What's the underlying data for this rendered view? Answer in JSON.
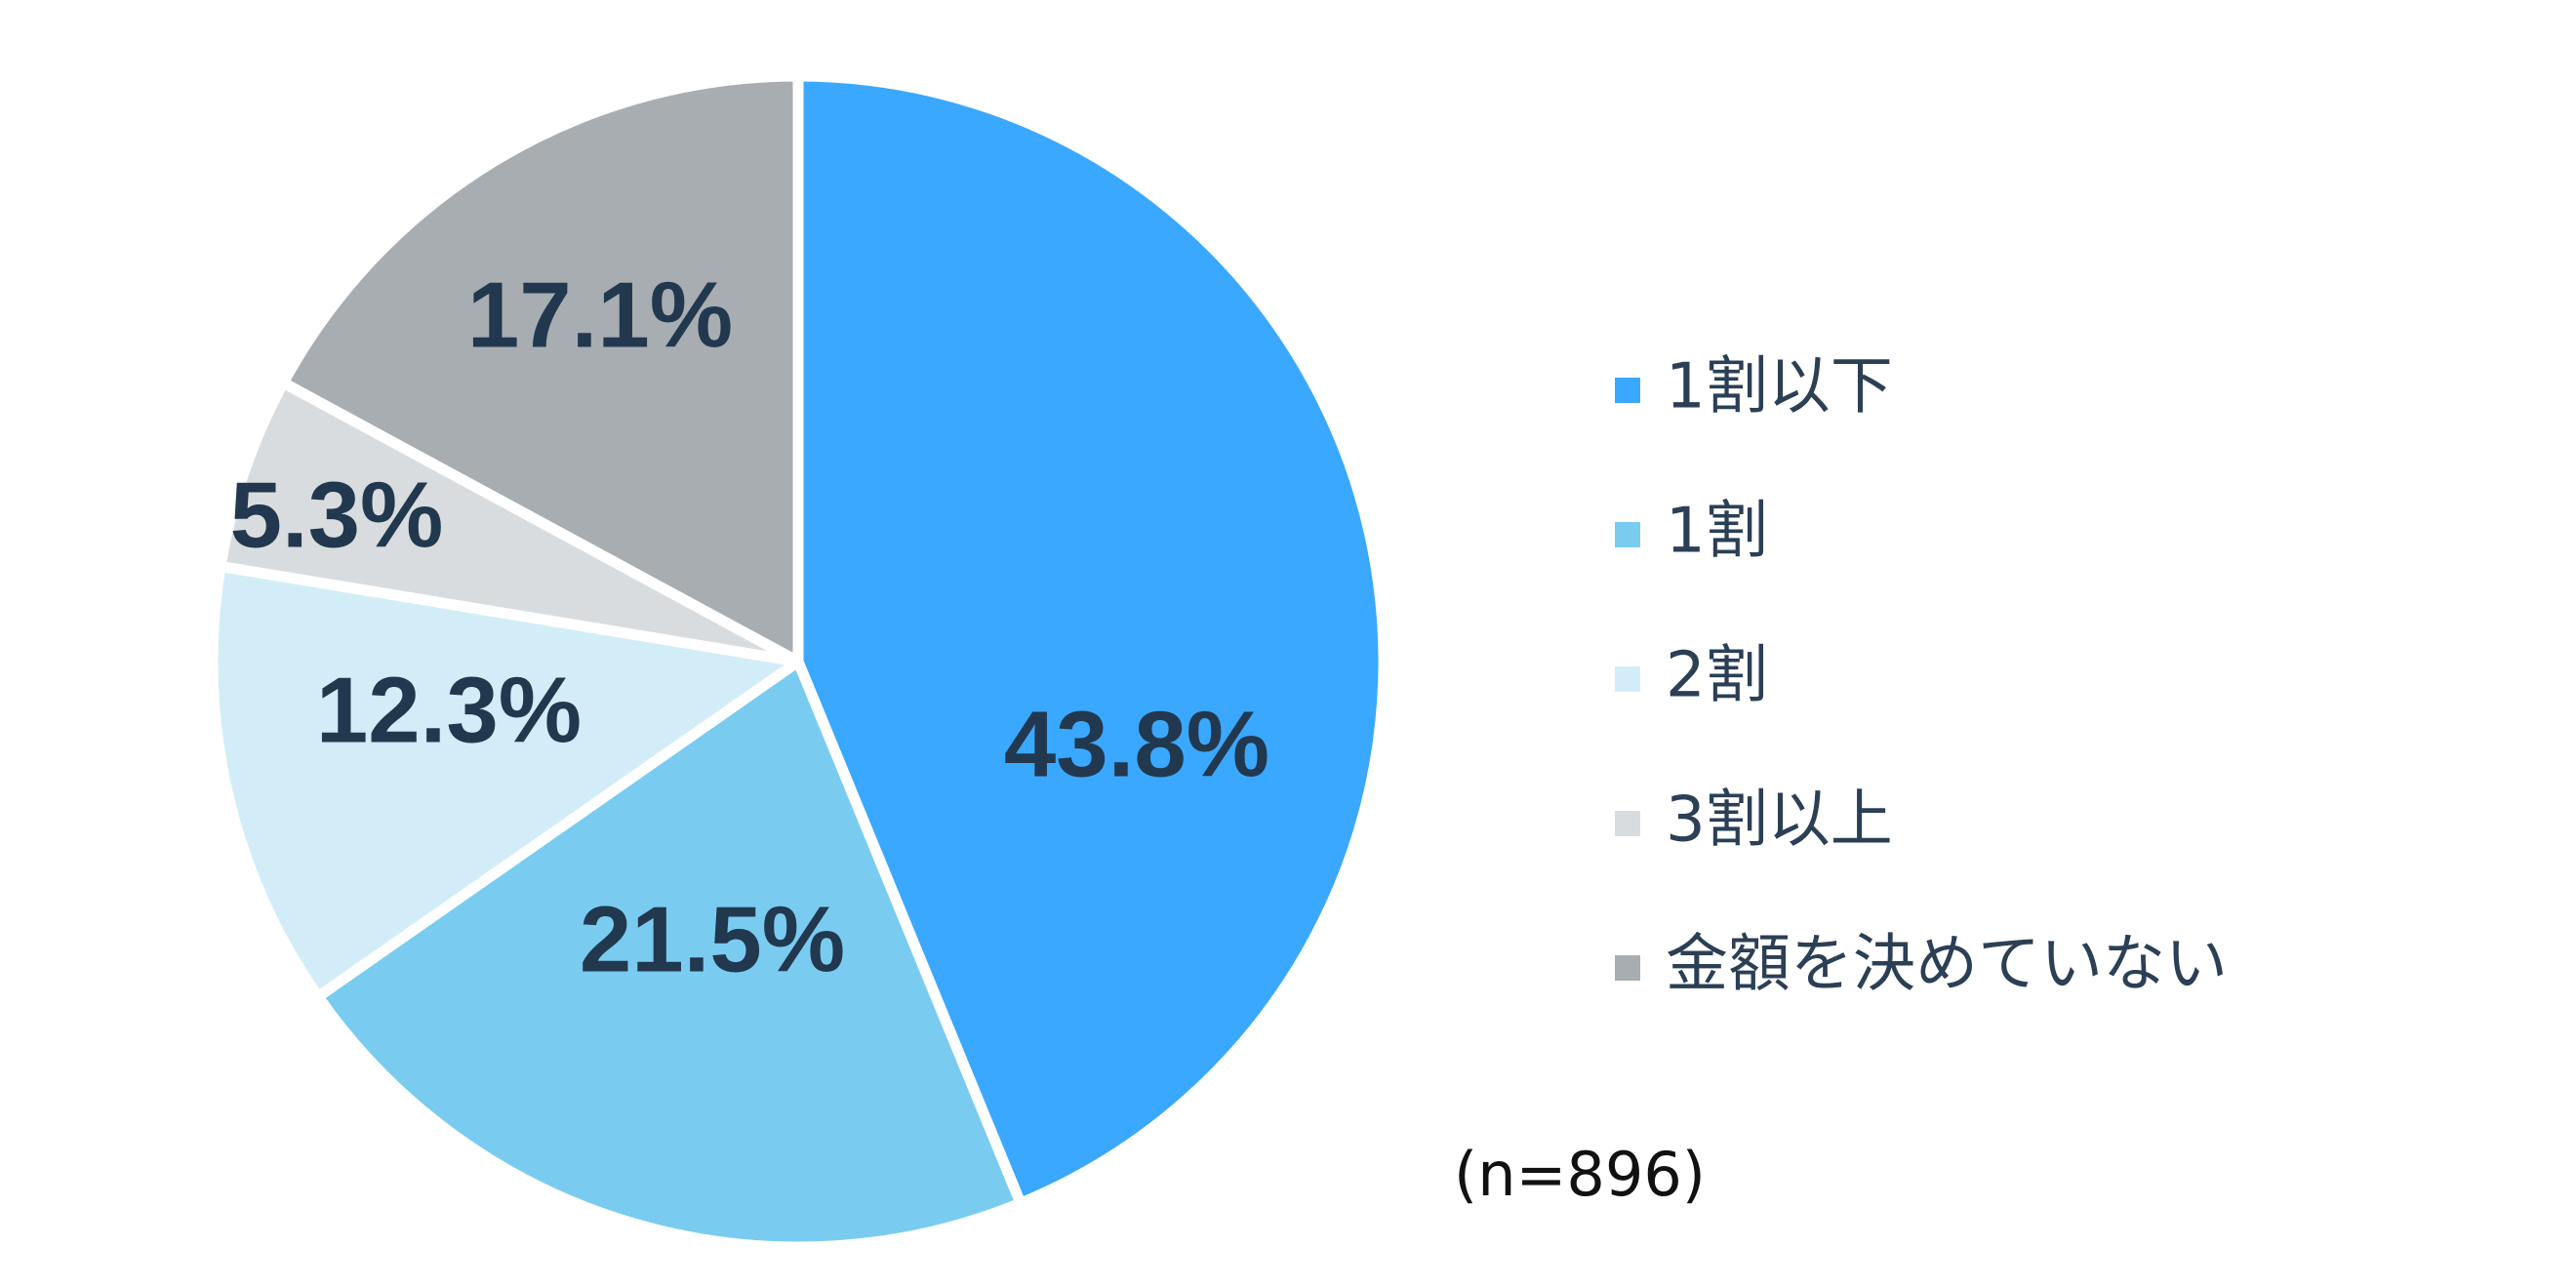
{
  "chart_data": {
    "type": "pie",
    "start_angle_deg": 0,
    "direction": "clockwise",
    "legend_position": "right",
    "slices": [
      {
        "label": "1割以下",
        "value": 43.8,
        "display": "43.8%",
        "color": "#3aa8ff"
      },
      {
        "label": "1割",
        "value": 21.5,
        "display": "21.5%",
        "color": "#79ccf0"
      },
      {
        "label": "2割",
        "value": 12.3,
        "display": "12.3%",
        "color": "#d3edf8"
      },
      {
        "label": "3割以上",
        "value": 5.3,
        "display": "5.3%",
        "color": "#d9dcde"
      },
      {
        "label": "金額を決めていない",
        "value": 17.1,
        "display": "17.1%",
        "color": "#a8adb2"
      }
    ],
    "annotation": "(n=896)",
    "separator_color": "#ffffff",
    "label_color": "#22384f",
    "legend_text_color": "#2b3f55"
  }
}
